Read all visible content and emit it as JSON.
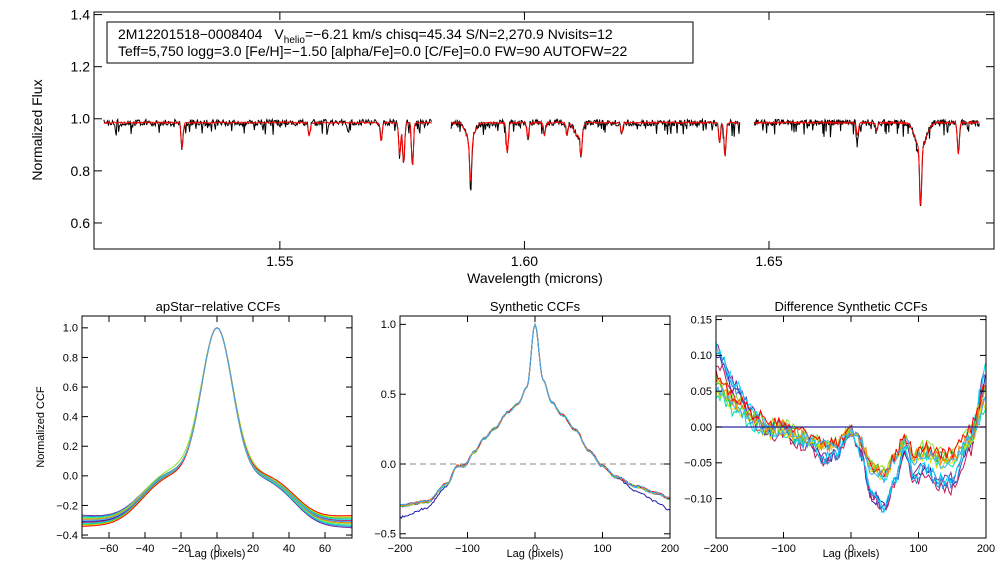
{
  "chart_data": [
    {
      "id": "spectrum",
      "type": "line",
      "title": "",
      "xlabel": "Wavelength (microns)",
      "ylabel": "Normalized Flux",
      "xlim": [
        1.512,
        1.696
      ],
      "ylim": [
        0.5,
        1.41
      ],
      "xticks": [
        1.55,
        1.6,
        1.65
      ],
      "xtick_labels": [
        "1.55",
        "1.60",
        "1.65"
      ],
      "yticks": [
        0.6,
        0.8,
        1.0,
        1.2,
        1.4
      ],
      "ytick_labels": [
        "0.6",
        "0.8",
        "1.0",
        "1.2",
        "1.4"
      ],
      "annotation": {
        "line1_star": "2M12201518−0008404",
        "line1_v": "V",
        "line1_vsub": "helio",
        "line1_rest": "=−6.21 km/s  chisq=45.34  S/N=2,270.9  Nvisits=12",
        "line2": "Teff=5,750 logg=3.0 [Fe/H]=−1.50 [alpha/Fe]=0.0 [C/Fe]=0.0 FW=90 AUTOFW=22"
      },
      "chips": [
        [
          1.514,
          1.581
        ],
        [
          1.585,
          1.644
        ],
        [
          1.647,
          1.693
        ]
      ],
      "continuum": 0.985,
      "absorption_lines": [
        {
          "wl": 1.53,
          "depth": 0.1
        },
        {
          "wl": 1.556,
          "depth": 0.05
        },
        {
          "wl": 1.5707,
          "depth": 0.07
        },
        {
          "wl": 1.5745,
          "depth": 0.13
        },
        {
          "wl": 1.5753,
          "depth": 0.16
        },
        {
          "wl": 1.5771,
          "depth": 0.17
        },
        {
          "wl": 1.589,
          "depth": 0.16
        },
        {
          "wl": 1.5965,
          "depth": 0.12
        },
        {
          "wl": 1.6007,
          "depth": 0.06
        },
        {
          "wl": 1.6041,
          "depth": 0.05
        },
        {
          "wl": 1.6087,
          "depth": 0.05
        },
        {
          "wl": 1.6116,
          "depth": 0.1
        },
        {
          "wl": 1.6199,
          "depth": 0.04
        },
        {
          "wl": 1.6399,
          "depth": 0.08
        },
        {
          "wl": 1.641,
          "depth": 0.13
        },
        {
          "wl": 1.6681,
          "depth": 0.05
        },
        {
          "wl": 1.672,
          "depth": 0.03
        },
        {
          "wl": 1.681,
          "depth": 0.22
        },
        {
          "wl": 1.6887,
          "depth": 0.12
        }
      ],
      "broad_lines": [
        {
          "wl": 1.5889,
          "depth": 0.07,
          "width": 0.0012
        },
        {
          "wl": 1.6109,
          "depth": 0.05,
          "width": 0.001
        },
        {
          "wl": 1.681,
          "depth": 0.1,
          "width": 0.0015
        }
      ],
      "series": [
        {
          "name": "observed",
          "color": "#000000"
        },
        {
          "name": "model",
          "color": "#ff0000"
        }
      ]
    },
    {
      "id": "apstar-ccf",
      "type": "line",
      "title": "apStar−relative CCFs",
      "xlabel": "Lag (pixels)",
      "ylabel": "Normalized CCF",
      "xlim": [
        -75,
        75
      ],
      "ylim": [
        -0.42,
        1.08
      ],
      "xticks": [
        -60,
        -40,
        -20,
        0,
        20,
        40,
        60
      ],
      "xtick_labels": [
        "−60",
        "−40",
        "−20",
        "0",
        "20",
        "40",
        "60"
      ],
      "yticks": [
        -0.4,
        -0.2,
        0.0,
        0.2,
        0.4,
        0.6,
        0.8,
        1.0
      ],
      "ytick_labels": [
        "−0.4",
        "−0.2",
        "0.0",
        "0.2",
        "0.4",
        "0.6",
        "0.8",
        "1.0"
      ],
      "peak_sigma": 8.5,
      "peak_lag": 0,
      "series_colors": [
        "#1f1fb0",
        "#7a2a9a",
        "#c2185b",
        "#2090e0",
        "#00d7ff",
        "#00e0b0",
        "#30c030",
        "#90e020",
        "#e0e000",
        "#ff8000",
        "#ff0000",
        "#3cb0ff"
      ]
    },
    {
      "id": "synthetic-ccf",
      "type": "line",
      "title": "Synthetic CCFs",
      "xlabel": "Lag (pixels)",
      "ylabel": "",
      "xlim": [
        -200,
        200
      ],
      "ylim": [
        -0.53,
        1.06
      ],
      "xticks": [
        -200,
        -100,
        0,
        100,
        200
      ],
      "xtick_labels": [
        "−200",
        "−100",
        "0",
        "100",
        "200"
      ],
      "yticks": [
        -0.5,
        0.0,
        0.5,
        1.0
      ],
      "ytick_labels": [
        "−0.5",
        "0.0",
        "0.5",
        "1.0"
      ],
      "reference_line_y": 0.0,
      "series_colors": [
        "#1f1fb0",
        "#7a2a9a",
        "#c2185b",
        "#2090e0",
        "#00d7ff",
        "#00e0b0",
        "#30c030",
        "#90e020",
        "#e0e000",
        "#ff8000",
        "#ff0000",
        "#3cb0ff"
      ]
    },
    {
      "id": "difference-ccf",
      "type": "line",
      "title": "Difference Synthetic CCFs",
      "xlabel": "Lag (pixels)",
      "ylabel": "",
      "xlim": [
        -200,
        200
      ],
      "ylim": [
        -0.155,
        0.155
      ],
      "xticks": [
        -200,
        -100,
        0,
        100,
        200
      ],
      "xtick_labels": [
        "−200",
        "−100",
        "0",
        "100",
        "200"
      ],
      "yticks": [
        -0.1,
        -0.05,
        0.0,
        0.05,
        0.1,
        0.15
      ],
      "ytick_labels": [
        "−0.10",
        "−0.05",
        "0.00",
        "0.05",
        "0.10",
        "0.15"
      ],
      "reference_line_y": 0.0,
      "reference_line_color": "#2a2aa0",
      "base_shape": [
        [
          -200,
          0.08
        ],
        [
          -170,
          0.04
        ],
        [
          -140,
          0.01
        ],
        [
          -120,
          -0.005
        ],
        [
          -100,
          0.0
        ],
        [
          -80,
          -0.015
        ],
        [
          -60,
          -0.02
        ],
        [
          -40,
          -0.035
        ],
        [
          -20,
          -0.03
        ],
        [
          0,
          -0.005
        ],
        [
          15,
          -0.03
        ],
        [
          30,
          -0.075
        ],
        [
          50,
          -0.09
        ],
        [
          65,
          -0.06
        ],
        [
          80,
          -0.025
        ],
        [
          95,
          -0.055
        ],
        [
          110,
          -0.045
        ],
        [
          130,
          -0.06
        ],
        [
          150,
          -0.06
        ],
        [
          175,
          -0.02
        ],
        [
          200,
          0.055
        ]
      ],
      "series_colors": [
        "#1f1fb0",
        "#7a2a9a",
        "#c2185b",
        "#2090e0",
        "#00d7ff",
        "#00e0b0",
        "#30c030",
        "#90e020",
        "#e0e000",
        "#ff8000",
        "#ff0000",
        "#3cb0ff"
      ]
    }
  ]
}
